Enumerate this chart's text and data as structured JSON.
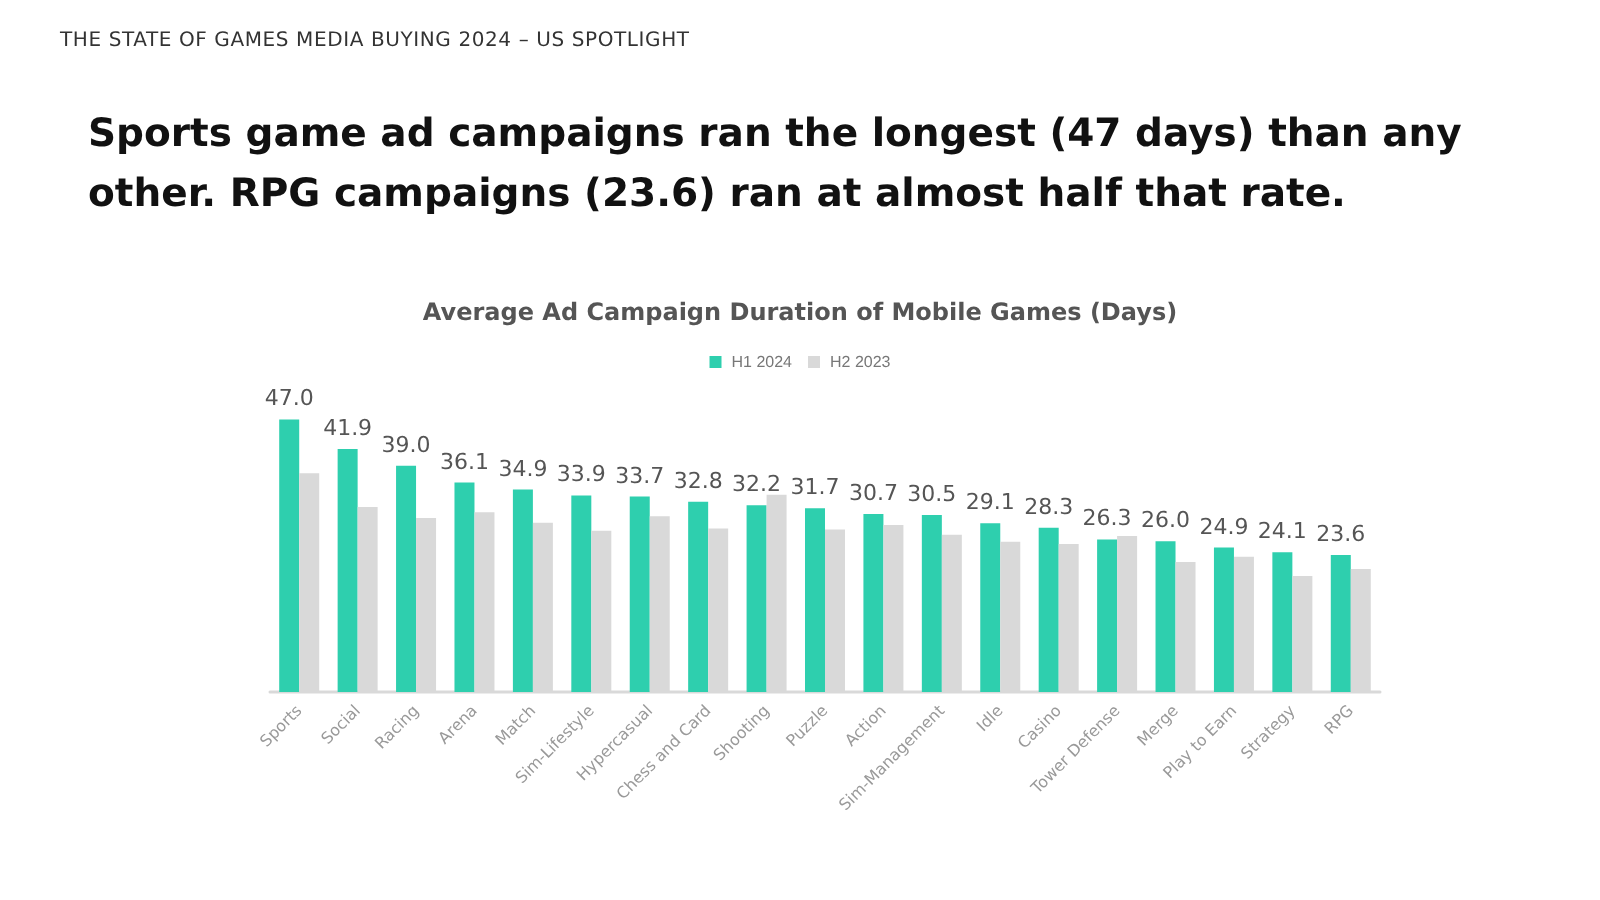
{
  "chart_data": {
    "type": "bar",
    "title": "Sports game ad campaigns ran the longest (47 days) than any other. RPG campaigns (23.6) ran at almost half that rate.",
    "subtitle": "Average Ad Campaign Duration of Mobile Games (Days)",
    "annotations": [
      "THE STATE OF GAMES MEDIA BUYING 2024 – US SPOTLIGHT"
    ],
    "categories": [
      "Sports",
      "Social",
      "Racing",
      "Arena",
      "Match",
      "Sim-Lifestyle",
      "Hypercasual",
      "Chess and Card",
      "Shooting",
      "Puzzle",
      "Action",
      "Sim-Management",
      "Idle",
      "Casino",
      "Tower Defense",
      "Merge",
      "Play to Earn",
      "Strategy",
      "RPG"
    ],
    "series": [
      {
        "name": "H1 2024",
        "color": "#2ecfae",
        "values": [
          47.0,
          41.9,
          39.0,
          36.1,
          34.9,
          33.9,
          33.7,
          32.8,
          32.2,
          31.7,
          30.7,
          30.5,
          29.1,
          28.3,
          26.3,
          26.0,
          24.9,
          24.1,
          23.6
        ],
        "value_labels": [
          "47.0",
          "41.9",
          "39.0",
          "36.1",
          "34.9",
          "33.9",
          "33.7",
          "32.8",
          "32.2",
          "31.7",
          "30.7",
          "30.5",
          "29.1",
          "28.3",
          "26.3",
          "26.0",
          "24.9",
          "24.1",
          "23.6"
        ]
      },
      {
        "name": "H2 2023",
        "color": "#d9d9d9",
        "values": [
          37.7,
          31.9,
          30.0,
          31.0,
          29.2,
          27.8,
          30.3,
          28.2,
          34.0,
          28.0,
          28.8,
          27.1,
          25.9,
          25.5,
          26.9,
          22.4,
          23.3,
          20.0,
          21.2
        ]
      }
    ],
    "legend": "top"
  }
}
